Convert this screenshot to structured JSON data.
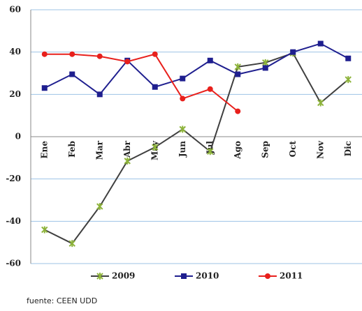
{
  "chart_data": {
    "type": "line",
    "categories": [
      "Ene",
      "Feb",
      "Mar",
      "Abr",
      "May",
      "Jun",
      "Jul",
      "Ago",
      "Sep",
      "Oct",
      "Nov",
      "Dic"
    ],
    "series": [
      {
        "name": "2009",
        "color": "#3f3f3f",
        "marker_color": "#8db33a",
        "marker": "asterisk",
        "values": [
          -44,
          -50.5,
          -33,
          -11.5,
          -5,
          3.5,
          -7,
          33,
          35,
          39.5,
          16,
          27
        ]
      },
      {
        "name": "2010",
        "color": "#1f1f8f",
        "marker_color": "#1f1f8f",
        "marker": "square",
        "values": [
          23,
          29.5,
          20,
          36,
          23.5,
          27.5,
          36,
          29.5,
          32.5,
          40,
          44,
          37
        ]
      },
      {
        "name": "2011",
        "color": "#e8201c",
        "marker_color": "#e8201c",
        "marker": "circle",
        "values": [
          39,
          39,
          38,
          35.5,
          39,
          18,
          22.5,
          12,
          null,
          null,
          null,
          null
        ]
      }
    ],
    "ylim": [
      -60,
      60
    ],
    "yticks": [
      -60,
      -40,
      -20,
      0,
      20,
      40,
      60
    ],
    "grid": true,
    "source": "fuente: CEEN UDD"
  }
}
